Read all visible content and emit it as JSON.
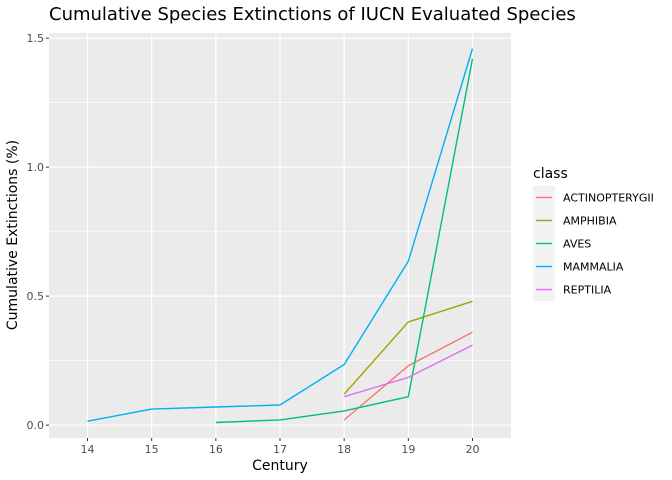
{
  "chart_data": {
    "type": "line",
    "title": "Cumulative Species Extinctions of IUCN Evaluated Species",
    "xlabel": "Century",
    "ylabel": "Cumulative Extinctions (%)",
    "x_ticks": [
      "14",
      "15",
      "16",
      "17",
      "18",
      "19",
      "20"
    ],
    "y_ticks": [
      "0.0",
      "0.5",
      "1.0",
      "1.5"
    ],
    "xlim": [
      13.4,
      20.6
    ],
    "ylim": [
      -0.05,
      1.52
    ],
    "grid": true,
    "legend": {
      "title": "class",
      "placement": "right"
    },
    "series": [
      {
        "name": "ACTINOPTERYGII",
        "color": "#F8766D",
        "x": [
          18,
          19,
          20
        ],
        "y": [
          0.02,
          0.23,
          0.36
        ]
      },
      {
        "name": "AMPHIBIA",
        "color": "#A3A500",
        "x": [
          18,
          19,
          20
        ],
        "y": [
          0.12,
          0.4,
          0.48
        ]
      },
      {
        "name": "AVES",
        "color": "#00BF7D",
        "x": [
          16,
          17,
          18,
          19,
          20
        ],
        "y": [
          0.01,
          0.02,
          0.055,
          0.11,
          1.42
        ]
      },
      {
        "name": "MAMMALIA",
        "color": "#00B0F6",
        "x": [
          14,
          15,
          16,
          17,
          18,
          19,
          20
        ],
        "y": [
          0.015,
          0.062,
          0.07,
          0.078,
          0.235,
          0.635,
          1.46
        ]
      },
      {
        "name": "REPTILIA",
        "color": "#E76BF3",
        "x": [
          18,
          19,
          20
        ],
        "y": [
          0.11,
          0.185,
          0.31
        ]
      }
    ]
  }
}
